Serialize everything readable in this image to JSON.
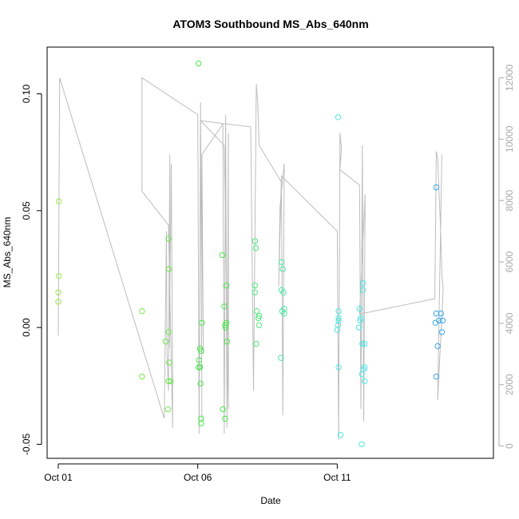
{
  "chart_data": {
    "type": "scatter",
    "title": "ATOM3 Southbound MS_Abs_640nm",
    "xlabel": "Date",
    "ylabel": "MS_Abs_640nm",
    "x_unit": "day of October 2016-style calendar (Oct 01 = 1)",
    "xlim": [
      0.6,
      16.6
    ],
    "ylim": [
      -0.056,
      0.12
    ],
    "y2lim": [
      -400,
      13000
    ],
    "x_ticks": [
      {
        "value": 1,
        "label": "Oct 01"
      },
      {
        "value": 6,
        "label": "Oct 06"
      },
      {
        "value": 11,
        "label": "Oct 11"
      }
    ],
    "y_ticks": [
      {
        "value": -0.05,
        "label": "-0.05"
      },
      {
        "value": 0.0,
        "label": "0.00"
      },
      {
        "value": 0.05,
        "label": "0.05"
      },
      {
        "value": 0.1,
        "label": "0.10"
      }
    ],
    "y2_ticks": [
      {
        "value": 0,
        "label": "0"
      },
      {
        "value": 2000,
        "label": "2000"
      },
      {
        "value": 4000,
        "label": "4000"
      },
      {
        "value": 6000,
        "label": "6000"
      },
      {
        "value": 8000,
        "label": "8000"
      },
      {
        "value": 10000,
        "label": "10000"
      },
      {
        "value": 12000,
        "label": "12000"
      }
    ],
    "colors": {
      "altitude_line": "#bdbdbd",
      "frame": "#000000",
      "right_axis": "#a9a9a9"
    },
    "series": [
      {
        "role": "points",
        "points": [
          {
            "x": 1.02,
            "y": 0.054,
            "color": "#9be84a"
          },
          {
            "x": 1.02,
            "y": 0.022,
            "color": "#9be84a"
          },
          {
            "x": 1.0,
            "y": 0.015,
            "color": "#9be84a"
          },
          {
            "x": 1.0,
            "y": 0.011,
            "color": "#9be84a"
          },
          {
            "x": 4.0,
            "y": 0.007,
            "color": "#7ae84a"
          },
          {
            "x": 4.0,
            "y": -0.021,
            "color": "#7ae84a"
          },
          {
            "x": 4.95,
            "y": 0.038,
            "color": "#6ee84a"
          },
          {
            "x": 4.97,
            "y": 0.025,
            "color": "#6ee84a"
          },
          {
            "x": 4.95,
            "y": -0.002,
            "color": "#6ee84a"
          },
          {
            "x": 4.85,
            "y": -0.006,
            "color": "#6ee84a"
          },
          {
            "x": 4.97,
            "y": -0.015,
            "color": "#6ee84a"
          },
          {
            "x": 4.95,
            "y": -0.023,
            "color": "#6ee84a"
          },
          {
            "x": 5.03,
            "y": -0.023,
            "color": "#6ee84a"
          },
          {
            "x": 4.93,
            "y": -0.035,
            "color": "#6ee84a"
          },
          {
            "x": 6.03,
            "y": 0.113,
            "color": "#4be84a"
          },
          {
            "x": 6.15,
            "y": 0.002,
            "color": "#4be84a"
          },
          {
            "x": 6.08,
            "y": -0.009,
            "color": "#4be84a"
          },
          {
            "x": 6.12,
            "y": -0.01,
            "color": "#4be84a"
          },
          {
            "x": 6.05,
            "y": -0.014,
            "color": "#4be84a"
          },
          {
            "x": 6.03,
            "y": -0.017,
            "color": "#4be84a"
          },
          {
            "x": 6.08,
            "y": -0.017,
            "color": "#4be84a"
          },
          {
            "x": 6.1,
            "y": -0.024,
            "color": "#4be84a"
          },
          {
            "x": 6.12,
            "y": -0.039,
            "color": "#4be84a"
          },
          {
            "x": 6.12,
            "y": -0.041,
            "color": "#4be84a"
          },
          {
            "x": 6.88,
            "y": 0.031,
            "color": "#4be84a"
          },
          {
            "x": 7.03,
            "y": 0.018,
            "color": "#4be84a"
          },
          {
            "x": 6.95,
            "y": 0.009,
            "color": "#4be84a"
          },
          {
            "x": 7.03,
            "y": 0.002,
            "color": "#4be84a"
          },
          {
            "x": 6.98,
            "y": 0.001,
            "color": "#4be84a"
          },
          {
            "x": 7.0,
            "y": 0.0,
            "color": "#4be84a"
          },
          {
            "x": 7.05,
            "y": -0.006,
            "color": "#4be84a"
          },
          {
            "x": 6.9,
            "y": -0.035,
            "color": "#4be84a"
          },
          {
            "x": 6.98,
            "y": -0.039,
            "color": "#4be84a"
          },
          {
            "x": 8.05,
            "y": 0.037,
            "color": "#4be87a"
          },
          {
            "x": 8.08,
            "y": 0.034,
            "color": "#4be87a"
          },
          {
            "x": 8.05,
            "y": 0.018,
            "color": "#4be87a"
          },
          {
            "x": 8.05,
            "y": 0.015,
            "color": "#4be87a"
          },
          {
            "x": 8.12,
            "y": 0.007,
            "color": "#4be87a"
          },
          {
            "x": 8.2,
            "y": 0.005,
            "color": "#4be87a"
          },
          {
            "x": 8.17,
            "y": 0.004,
            "color": "#4be87a"
          },
          {
            "x": 8.2,
            "y": 0.001,
            "color": "#4be87a"
          },
          {
            "x": 8.1,
            "y": -0.007,
            "color": "#4be87a"
          },
          {
            "x": 9.0,
            "y": 0.028,
            "color": "#4be8a0"
          },
          {
            "x": 9.05,
            "y": 0.025,
            "color": "#4be8a0"
          },
          {
            "x": 9.0,
            "y": 0.016,
            "color": "#4be8a0"
          },
          {
            "x": 9.07,
            "y": 0.015,
            "color": "#4be8a0"
          },
          {
            "x": 9.1,
            "y": 0.008,
            "color": "#4be8a0"
          },
          {
            "x": 9.03,
            "y": 0.007,
            "color": "#4be8a0"
          },
          {
            "x": 9.1,
            "y": 0.006,
            "color": "#4be8a0"
          },
          {
            "x": 8.98,
            "y": -0.013,
            "color": "#4be8a0"
          },
          {
            "x": 11.03,
            "y": 0.09,
            "color": "#4be8e0"
          },
          {
            "x": 11.05,
            "y": 0.007,
            "color": "#4be8e0"
          },
          {
            "x": 11.05,
            "y": 0.004,
            "color": "#4be8e0"
          },
          {
            "x": 11.05,
            "y": 0.003,
            "color": "#4be8e0"
          },
          {
            "x": 11.03,
            "y": 0.001,
            "color": "#4be8e0"
          },
          {
            "x": 11.0,
            "y": -0.001,
            "color": "#4be8e0"
          },
          {
            "x": 11.05,
            "y": -0.017,
            "color": "#4be8e0"
          },
          {
            "x": 11.12,
            "y": -0.046,
            "color": "#4be8e0"
          },
          {
            "x": 11.92,
            "y": 0.019,
            "color": "#4be8e8"
          },
          {
            "x": 11.92,
            "y": 0.016,
            "color": "#4be8e8"
          },
          {
            "x": 11.8,
            "y": 0.008,
            "color": "#4be8e8"
          },
          {
            "x": 11.85,
            "y": 0.004,
            "color": "#4be8e8"
          },
          {
            "x": 11.82,
            "y": 0.003,
            "color": "#4be8e8"
          },
          {
            "x": 11.78,
            "y": 0.0,
            "color": "#4be8e8"
          },
          {
            "x": 11.9,
            "y": -0.007,
            "color": "#4be8e8"
          },
          {
            "x": 11.98,
            "y": -0.007,
            "color": "#4be8e8"
          },
          {
            "x": 11.98,
            "y": -0.017,
            "color": "#4be8e8"
          },
          {
            "x": 11.95,
            "y": -0.018,
            "color": "#4be8e8"
          },
          {
            "x": 11.88,
            "y": -0.02,
            "color": "#4be8e8"
          },
          {
            "x": 11.98,
            "y": -0.023,
            "color": "#4be8e8"
          },
          {
            "x": 11.88,
            "y": -0.05,
            "color": "#4be8e8"
          },
          {
            "x": 14.55,
            "y": 0.06,
            "color": "#3aa8e8"
          },
          {
            "x": 14.55,
            "y": 0.006,
            "color": "#3aa8e8"
          },
          {
            "x": 14.72,
            "y": 0.006,
            "color": "#3aa8e8"
          },
          {
            "x": 14.52,
            "y": 0.002,
            "color": "#3aa8e8"
          },
          {
            "x": 14.65,
            "y": 0.003,
            "color": "#3aa8e8"
          },
          {
            "x": 14.78,
            "y": 0.003,
            "color": "#3aa8e8"
          },
          {
            "x": 14.75,
            "y": -0.002,
            "color": "#3aa8e8"
          },
          {
            "x": 14.6,
            "y": -0.008,
            "color": "#3aa8e8"
          },
          {
            "x": 14.55,
            "y": -0.021,
            "color": "#3aa8e8"
          }
        ]
      },
      {
        "role": "altitude-path",
        "axis": "right",
        "points": [
          [
            1.0,
            3600
          ],
          [
            1.05,
            12000
          ],
          [
            4.8,
            900
          ],
          [
            4.88,
            7000
          ],
          [
            4.9,
            3000
          ],
          [
            4.95,
            1800
          ],
          [
            5.0,
            9500
          ],
          [
            4.98,
            3200
          ],
          [
            5.05,
            9200
          ],
          [
            5.1,
            2200
          ],
          [
            5.1,
            600
          ],
          [
            4.95,
            7200
          ],
          [
            4.0,
            8300
          ],
          [
            4.0,
            12000
          ],
          [
            6.0,
            10800
          ],
          [
            6.05,
            400
          ],
          [
            6.1,
            11200
          ],
          [
            6.15,
            800
          ],
          [
            6.1,
            10500
          ],
          [
            6.2,
            3000
          ],
          [
            6.15,
            9500
          ],
          [
            6.9,
            10500
          ],
          [
            6.95,
            400
          ],
          [
            7.0,
            10800
          ],
          [
            7.05,
            600
          ],
          [
            7.1,
            10200
          ],
          [
            7.1,
            1200
          ],
          [
            6.95,
            9800
          ],
          [
            6.1,
            10600
          ],
          [
            7.9,
            10400
          ],
          [
            8.0,
            1800
          ],
          [
            8.1,
            11800
          ],
          [
            8.15,
            11200
          ],
          [
            8.2,
            9800
          ],
          [
            9.0,
            8600
          ],
          [
            9.05,
            1000
          ],
          [
            9.1,
            9200
          ],
          [
            8.95,
            7800
          ],
          [
            8.9,
            5200
          ],
          [
            9.0,
            8800
          ],
          [
            11.0,
            7000
          ],
          [
            11.05,
            200
          ],
          [
            11.1,
            10200
          ],
          [
            11.15,
            9700
          ],
          [
            11.1,
            9000
          ],
          [
            11.8,
            8500
          ],
          [
            11.85,
            1200
          ],
          [
            11.9,
            9800
          ],
          [
            11.95,
            800
          ],
          [
            12.0,
            8200
          ],
          [
            11.8,
            4300
          ],
          [
            14.5,
            4800
          ],
          [
            14.55,
            9600
          ],
          [
            14.6,
            9400
          ],
          [
            14.7,
            7200
          ],
          [
            14.75,
            5600
          ],
          [
            14.8,
            5100
          ],
          [
            14.6,
            1500
          ],
          [
            14.75,
            9500
          ]
        ]
      }
    ]
  }
}
